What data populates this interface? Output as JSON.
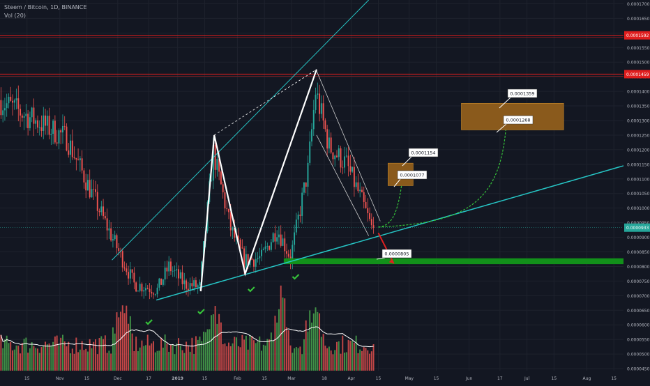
{
  "legend": {
    "symbol_line": "Steem / Bitcoin, 1D, BINANCE",
    "volume_line": "Vol (20)"
  },
  "colors": {
    "background": "#131722",
    "grid": "#1e222d",
    "axis_text": "#b2b5be",
    "up_candle": "#26a69a",
    "down_candle": "#ef5350",
    "trend_line": "#26c6c6",
    "resistance": "#e01e1e",
    "support_zone": "#12901a",
    "target_box": "#8a5a1c",
    "projection": "#36c23a",
    "zigzag": "#ffffff",
    "current_price": "#26a69a",
    "volume_up": "#4caf50",
    "volume_down": "#ef5350",
    "volume_ma": "#ffffff"
  },
  "axes": {
    "x_ticks": [
      "15",
      "Nov",
      "15",
      "Dec",
      "17",
      "2019",
      "15",
      "Feb",
      "15",
      "Mar",
      "18",
      "Apr",
      "15",
      "May",
      "15",
      "Jun",
      "17",
      "Jul",
      "15",
      "Aug",
      "15"
    ],
    "y_ticks": [
      "0.0001700",
      "0.0001650",
      "0.0001600",
      "0.0001550",
      "0.0001500",
      "0.0001450",
      "0.0001400",
      "0.0001350",
      "0.0001300",
      "0.0001250",
      "0.0001200",
      "0.0001150",
      "0.0001100",
      "0.0001050",
      "0.0001000",
      "0.0000950",
      "0.0000900",
      "0.0000850",
      "0.0000800",
      "0.0000750",
      "0.0000700",
      "0.0000650",
      "0.0000600",
      "0.0000550",
      "0.0000500",
      "0.0000450"
    ]
  },
  "price_labels": {
    "resistance_1": "0.0001592",
    "resistance_2": "0.0001459",
    "current": "0.0000933"
  },
  "callouts": {
    "target_high_2": "0.0001359",
    "target_low_2": "0.0001268",
    "target_high_1": "0.0001154",
    "target_low_1": "0.0001077",
    "downside": "0.0000805"
  },
  "chart_data": {
    "type": "candlestick",
    "title": "Steem / Bitcoin, 1D, BINANCE",
    "y_scale": "linear",
    "x_range": [
      "2018-10-01",
      "2019-08-20"
    ],
    "y_range": [
      4.43e-05,
      0.0001713
    ],
    "price_path_key_points": [
      {
        "date": "2018-10-01",
        "price": 0.000137
      },
      {
        "date": "2018-11-05",
        "price": 0.000124
      },
      {
        "date": "2018-11-25",
        "price": 9.5e-05
      },
      {
        "date": "2018-12-10",
        "price": 7.4e-05
      },
      {
        "date": "2018-12-22",
        "price": 7.2e-05
      },
      {
        "date": "2018-12-28",
        "price": 8e-05
      },
      {
        "date": "2019-01-05",
        "price": 7.4e-05
      },
      {
        "date": "2019-01-13",
        "price": 7.3e-05
      },
      {
        "date": "2019-01-20",
        "price": 0.000119
      },
      {
        "date": "2019-01-29",
        "price": 9.3e-05
      },
      {
        "date": "2019-02-05",
        "price": 8.2e-05
      },
      {
        "date": "2019-02-14",
        "price": 8.3e-05
      },
      {
        "date": "2019-02-22",
        "price": 9.3e-05
      },
      {
        "date": "2019-03-01",
        "price": 8.3e-05
      },
      {
        "date": "2019-03-10",
        "price": 0.000113
      },
      {
        "date": "2019-03-14",
        "price": 0.00014
      },
      {
        "date": "2019-03-21",
        "price": 0.000121
      },
      {
        "date": "2019-03-30",
        "price": 0.000115
      },
      {
        "date": "2019-04-06",
        "price": 0.000104
      },
      {
        "date": "2019-04-12",
        "price": 9.33e-05
      }
    ],
    "volume_pattern": "moderate volume; spikes around early Dec, late Jan, and mid-March",
    "annotations": {
      "horizontal_levels": [
        0.0001592,
        0.0001459
      ],
      "current_price": 9.33e-05,
      "support_zone": {
        "from": "2019-02-25",
        "to": "2019-08-20",
        "low": 8.08e-05,
        "high": 8.28e-05
      },
      "target_boxes": [
        {
          "from": "2019-04-20",
          "to": "2019-05-03",
          "low": 0.0001077,
          "high": 0.0001154
        },
        {
          "from": "2019-05-28",
          "to": "2019-07-20",
          "low": 0.0001268,
          "high": 0.0001359
        }
      ],
      "zigzag": [
        {
          "date": "2019-01-13",
          "price": 7.15e-05
        },
        {
          "date": "2019-01-20",
          "price": 0.000125
        },
        {
          "date": "2019-02-05",
          "price": 7.75e-05
        },
        {
          "date": "2019-03-14",
          "price": 0.0001475
        }
      ],
      "support_trendline": [
        {
          "date": "2018-12-21",
          "price": 6.85e-05
        },
        {
          "date": "2019-08-20",
          "price": 0.0001145
        }
      ],
      "upper_channel_line": [
        {
          "date": "2018-11-28",
          "price": 8.22e-05
        },
        {
          "date": "2019-04-10",
          "price": 0.0001713
        }
      ],
      "descending_wedge": [
        [
          {
            "date": "2019-03-14",
            "price": 0.000147
          },
          {
            "date": "2019-04-16",
            "price": 9.55e-05
          }
        ],
        [
          {
            "date": "2019-03-14",
            "price": 0.000125
          },
          {
            "date": "2019-04-10",
            "price": 9.05e-05
          }
        ]
      ],
      "check_marks_dates": [
        "2018-12-17",
        "2019-01-13",
        "2019-02-08",
        "2019-03-03"
      ]
    }
  }
}
